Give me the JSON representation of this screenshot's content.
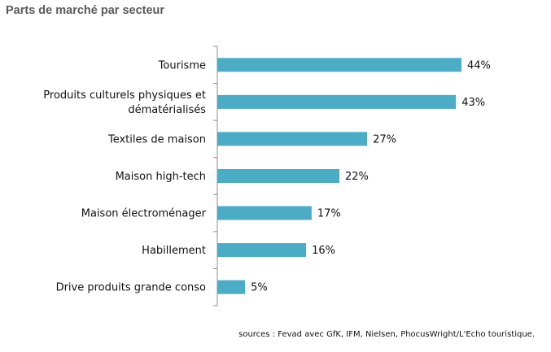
{
  "chart_data": {
    "type": "bar",
    "orientation": "horizontal",
    "title": "Parts de marché par secteur",
    "categories": [
      [
        "Tourisme"
      ],
      [
        "Produits culturels physiques et",
        "dématérialisés"
      ],
      [
        "Textiles de maison"
      ],
      [
        "Maison high-tech"
      ],
      [
        "Maison électroménager"
      ],
      [
        "Habillement"
      ],
      [
        "Drive produits grande conso"
      ]
    ],
    "values": [
      44,
      43,
      27,
      22,
      17,
      16,
      5
    ],
    "data_labels": [
      "44%",
      "43%",
      "27%",
      "22%",
      "17%",
      "16%",
      "5%"
    ],
    "unit": "%",
    "xlabel": "",
    "ylabel": "",
    "xlim": [
      0,
      50
    ],
    "grid": false,
    "legend": "none",
    "source": "sources : Fevad avec GfK, IFM, Nielsen, PhocusWright/L'Echo touristique.",
    "colors": {
      "bar": "#4BACC6",
      "axis": "#8c8c8c",
      "title": "#5a5a5a",
      "text": "#111111"
    }
  }
}
